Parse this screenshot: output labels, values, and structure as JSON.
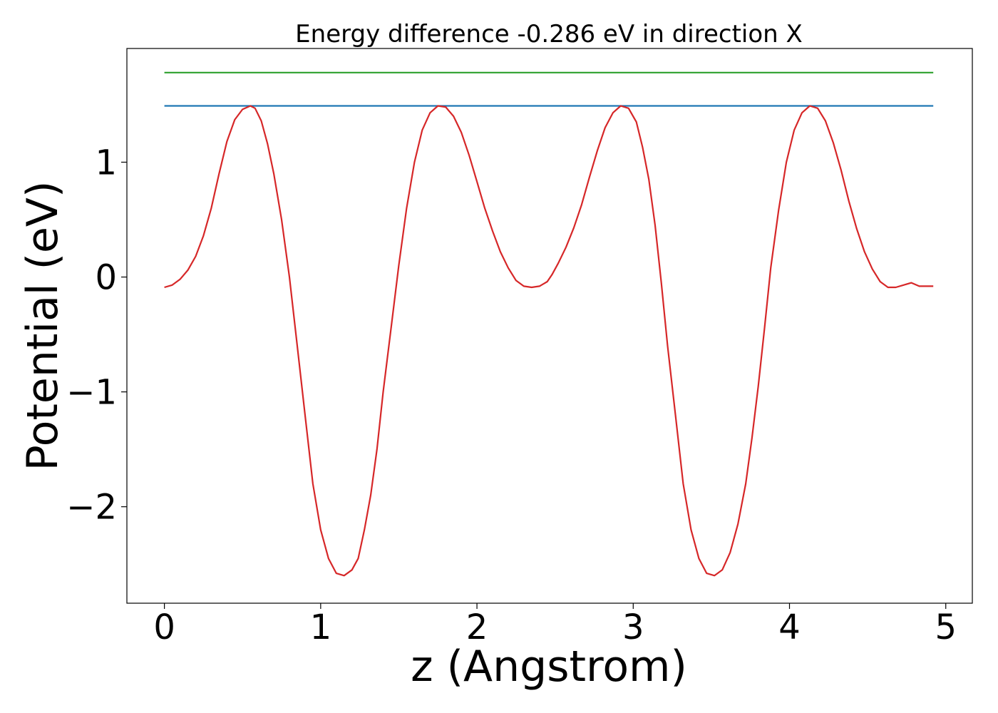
{
  "chart_data": {
    "type": "line",
    "title": "Energy difference -0.286 eV in direction X",
    "xlabel": "z (Angstrom)",
    "ylabel": "Potential (eV)",
    "xlim": [
      -0.24,
      5.17
    ],
    "ylim": [
      -2.84,
      1.99
    ],
    "xticks": [
      0,
      1,
      2,
      3,
      4,
      5
    ],
    "xtick_labels": [
      "0",
      "1",
      "2",
      "3",
      "4",
      "5"
    ],
    "yticks": [
      -2,
      -1,
      0,
      1
    ],
    "ytick_labels": [
      "−2",
      "−1",
      "0",
      "1"
    ],
    "grid": false,
    "series": [
      {
        "color": "#1f77b4",
        "x": [
          0,
          4.92
        ],
        "y": [
          1.49,
          1.49
        ]
      },
      {
        "color": "#2ca02c",
        "x": [
          0,
          4.92
        ],
        "y": [
          1.78,
          1.78
        ]
      },
      {
        "color": "#d62728",
        "x": [
          0,
          0.05,
          0.1,
          0.15,
          0.2,
          0.25,
          0.3,
          0.35,
          0.4,
          0.45,
          0.5,
          0.55,
          0.58,
          0.62,
          0.66,
          0.7,
          0.75,
          0.8,
          0.85,
          0.9,
          0.95,
          1.0,
          1.05,
          1.1,
          1.15,
          1.2,
          1.24,
          1.28,
          1.32,
          1.36,
          1.4,
          1.45,
          1.5,
          1.55,
          1.6,
          1.65,
          1.7,
          1.75,
          1.8,
          1.85,
          1.9,
          1.95,
          2.0,
          2.05,
          2.1,
          2.15,
          2.2,
          2.25,
          2.3,
          2.35,
          2.4,
          2.45,
          2.48,
          2.52,
          2.57,
          2.62,
          2.67,
          2.72,
          2.77,
          2.82,
          2.87,
          2.92,
          2.97,
          3.02,
          3.06,
          3.1,
          3.14,
          3.18,
          3.22,
          3.27,
          3.32,
          3.37,
          3.42,
          3.47,
          3.52,
          3.57,
          3.62,
          3.67,
          3.72,
          3.76,
          3.8,
          3.84,
          3.88,
          3.93,
          3.98,
          4.03,
          4.08,
          4.13,
          4.18,
          4.23,
          4.28,
          4.33,
          4.38,
          4.43,
          4.48,
          4.53,
          4.58,
          4.63,
          4.68,
          4.73,
          4.78,
          4.83,
          4.88,
          4.92
        ],
        "y": [
          -0.09,
          -0.07,
          -0.02,
          0.06,
          0.18,
          0.36,
          0.6,
          0.9,
          1.18,
          1.37,
          1.46,
          1.49,
          1.47,
          1.36,
          1.16,
          0.9,
          0.5,
          0.0,
          -0.6,
          -1.2,
          -1.8,
          -2.2,
          -2.45,
          -2.58,
          -2.6,
          -2.55,
          -2.45,
          -2.2,
          -1.9,
          -1.5,
          -1.0,
          -0.45,
          0.1,
          0.6,
          1.0,
          1.28,
          1.43,
          1.49,
          1.48,
          1.4,
          1.26,
          1.06,
          0.83,
          0.6,
          0.4,
          0.22,
          0.08,
          -0.03,
          -0.08,
          -0.09,
          -0.08,
          -0.04,
          0.02,
          0.12,
          0.26,
          0.43,
          0.63,
          0.87,
          1.1,
          1.3,
          1.43,
          1.49,
          1.47,
          1.35,
          1.13,
          0.85,
          0.45,
          -0.05,
          -0.6,
          -1.2,
          -1.8,
          -2.2,
          -2.45,
          -2.58,
          -2.6,
          -2.55,
          -2.4,
          -2.15,
          -1.8,
          -1.4,
          -0.95,
          -0.45,
          0.08,
          0.58,
          1.0,
          1.28,
          1.43,
          1.49,
          1.47,
          1.36,
          1.17,
          0.93,
          0.66,
          0.42,
          0.22,
          0.07,
          -0.04,
          -0.09,
          -0.09,
          -0.07,
          -0.05,
          -0.08,
          -0.08,
          -0.08
        ]
      }
    ]
  }
}
